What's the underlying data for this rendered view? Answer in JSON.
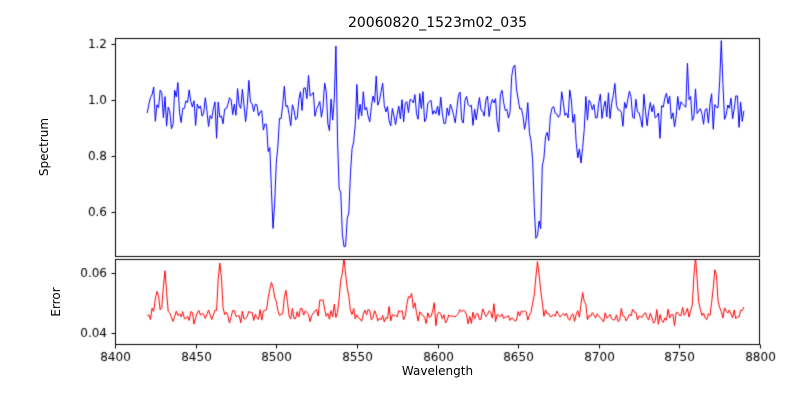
{
  "figure": {
    "background": "#ffffff",
    "axes_color": "#000000",
    "tick_font_px": 12
  },
  "chart_data": {
    "type": "line",
    "title": "20060820_1523m02_035",
    "xlabel": "Wavelength",
    "xlim": [
      8400,
      8800
    ],
    "xticks": [
      8400,
      8450,
      8500,
      8550,
      8600,
      8650,
      8700,
      8750,
      8800
    ],
    "x_start": 8420,
    "x_end": 8790,
    "x_step": 1,
    "grid": false,
    "legend": null,
    "subplots": [
      {
        "name": "spectrum",
        "ylabel": "Spectrum",
        "ylim": [
          0.44,
          1.22
        ],
        "yticks": [
          {
            "value": 0.6,
            "label": "0.6"
          },
          {
            "value": 0.8,
            "label": "0.8"
          },
          {
            "value": 1.0,
            "label": "1.0"
          },
          {
            "value": 1.2,
            "label": "1.2"
          }
        ],
        "series": {
          "color": "#0000ff",
          "baseline": 0.97,
          "noise_sigma": 0.041,
          "seed": 3,
          "features": [
            {
              "center": 8498,
              "amplitude": -0.33,
              "sigma": 2.0
            },
            {
              "center": 8542.5,
              "amplitude": -0.48,
              "sigma": 3.0
            },
            {
              "center": 8662,
              "amplitude": -0.47,
              "sigma": 2.8
            },
            {
              "center": 8688,
              "amplitude": -0.17,
              "sigma": 1.8
            },
            {
              "center": 8428,
              "amplitude": 0.14,
              "sigma": 0.7
            },
            {
              "center": 8520,
              "amplitude": 0.1,
              "sigma": 0.7
            },
            {
              "center": 8537,
              "amplitude": 0.3,
              "sigma": 0.6
            },
            {
              "center": 8648,
              "amplitude": 0.17,
              "sigma": 0.7
            },
            {
              "center": 8710,
              "amplitude": 0.1,
              "sigma": 0.7
            },
            {
              "center": 8755,
              "amplitude": 0.13,
              "sigma": 0.7
            },
            {
              "center": 8776,
              "amplitude": 0.15,
              "sigma": 0.7
            }
          ]
        }
      },
      {
        "name": "error",
        "ylabel": "Error",
        "ylim": [
          0.036,
          0.0645
        ],
        "yticks": [
          {
            "value": 0.04,
            "label": "0.04"
          },
          {
            "value": 0.06,
            "label": "0.06"
          }
        ],
        "series": {
          "color": "#ff0000",
          "baseline": 0.0458,
          "noise_sigma": 0.0012,
          "seed": 8,
          "features": [
            {
              "center": 8426,
              "amplitude": 0.01,
              "sigma": 1.2
            },
            {
              "center": 8431,
              "amplitude": 0.014,
              "sigma": 1.0
            },
            {
              "center": 8465,
              "amplitude": 0.019,
              "sigma": 1.0
            },
            {
              "center": 8497,
              "amplitude": 0.011,
              "sigma": 1.8
            },
            {
              "center": 8506,
              "amplitude": 0.007,
              "sigma": 1.2
            },
            {
              "center": 8528,
              "amplitude": 0.005,
              "sigma": 1.5
            },
            {
              "center": 8542,
              "amplitude": 0.018,
              "sigma": 1.8
            },
            {
              "center": 8583,
              "amplitude": 0.006,
              "sigma": 1.5
            },
            {
              "center": 8662,
              "amplitude": 0.016,
              "sigma": 1.8
            },
            {
              "center": 8690,
              "amplitude": 0.006,
              "sigma": 1.3
            },
            {
              "center": 8760,
              "amplitude": 0.019,
              "sigma": 1.1
            },
            {
              "center": 8772,
              "amplitude": 0.015,
              "sigma": 1.2
            }
          ]
        }
      }
    ]
  }
}
